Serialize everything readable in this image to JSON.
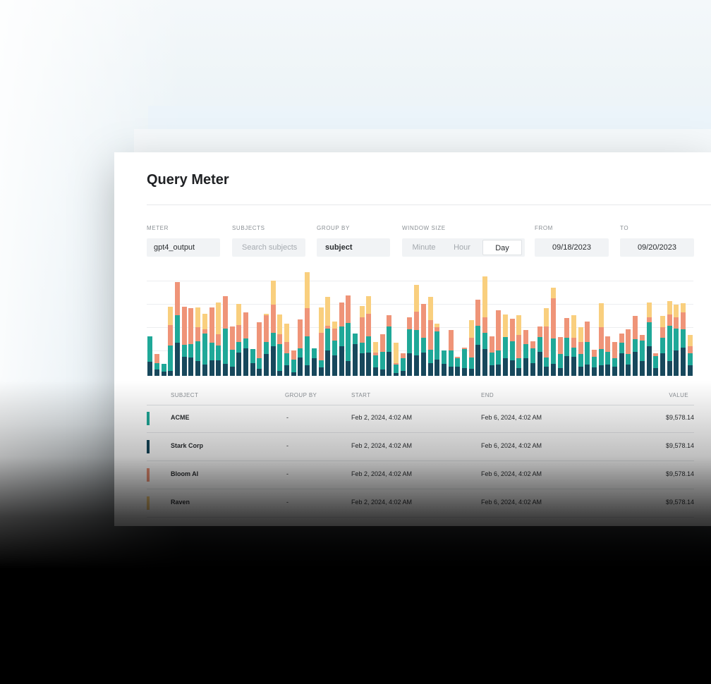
{
  "page": {
    "title": "Query Meter"
  },
  "filters": {
    "meter": {
      "label": "METER",
      "value": "gpt4_output"
    },
    "subjects": {
      "label": "SUBJECTS",
      "placeholder": "Search subjects"
    },
    "group_by": {
      "label": "GROUP BY",
      "value": "subject"
    },
    "window_size": {
      "label": "WINDOW SIZE",
      "options": [
        "Minute",
        "Hour",
        "Day"
      ],
      "selected": "Day"
    },
    "from": {
      "label": "FROM",
      "value": "09/18/2023"
    },
    "to": {
      "label": "TO",
      "value": "09/20/2023"
    }
  },
  "colors": {
    "acme": "#1fa898",
    "stark_corp": "#17485c",
    "bloom_ai": "#ef9478",
    "raven": "#f9cf7e"
  },
  "chart_data": {
    "type": "bar",
    "stacked": true,
    "series": [
      {
        "name": "Stark Corp",
        "color": "#17485c",
        "values": [
          16,
          7,
          5,
          6,
          38,
          22,
          21,
          17,
          13,
          18,
          18,
          14,
          11,
          27,
          32,
          15,
          8,
          25,
          34,
          6,
          12,
          4,
          21,
          12,
          20,
          10,
          29,
          24,
          34,
          17,
          37,
          26,
          27,
          10,
          7,
          28,
          3,
          6,
          26,
          24,
          27,
          15,
          19,
          14,
          11,
          11,
          9,
          8,
          36,
          31,
          12,
          13,
          20,
          18,
          9,
          20,
          15,
          28,
          11,
          14,
          9,
          23,
          22,
          11,
          13,
          10,
          12,
          13,
          11,
          26,
          13,
          28,
          17,
          34,
          9,
          26,
          17,
          29,
          33,
          12
        ]
      },
      {
        "name": "ACME",
        "color": "#1fa898",
        "values": [
          30,
          8,
          9,
          29,
          32,
          14,
          16,
          23,
          36,
          20,
          17,
          41,
          19,
          12,
          11,
          16,
          12,
          14,
          16,
          31,
          14,
          15,
          11,
          34,
          12,
          8,
          26,
          17,
          23,
          44,
          12,
          12,
          19,
          14,
          21,
          29,
          10,
          14,
          28,
          29,
          17,
          15,
          32,
          15,
          18,
          9,
          22,
          13,
          22,
          19,
          15,
          16,
          25,
          22,
          11,
          17,
          17,
          17,
          10,
          29,
          16,
          21,
          11,
          14,
          26,
          12,
          19,
          15,
          9,
          12,
          12,
          14,
          24,
          28,
          14,
          18,
          41,
          26,
          21,
          14
        ]
      }
    ],
    "extra_series": [
      {
        "name": "Bloom AI",
        "color": "#ef9478",
        "values": [
          0,
          10,
          0,
          24,
          38,
          44,
          41,
          16,
          5,
          41,
          13,
          37,
          27,
          20,
          30,
          0,
          42,
          31,
          32,
          11,
          13,
          10,
          33,
          32,
          0,
          32,
          3,
          14,
          28,
          32,
          0,
          30,
          26,
          3,
          20,
          13,
          2,
          6,
          14,
          21,
          39,
          34,
          5,
          0,
          24,
          2,
          2,
          23,
          30,
          18,
          19,
          47,
          0,
          26,
          27,
          16,
          8,
          12,
          36,
          47,
          20,
          23,
          11,
          14,
          24,
          8,
          25,
          18,
          19,
          11,
          29,
          27,
          6,
          6,
          3,
          12,
          13,
          13,
          19,
          8
        ]
      },
      {
        "name": "Raven",
        "color": "#f9cf7e",
        "values": [
          0,
          0,
          0,
          21,
          0,
          0,
          0,
          23,
          18,
          0,
          37,
          0,
          0,
          24,
          0,
          0,
          0,
          2,
          28,
          23,
          21,
          0,
          0,
          42,
          0,
          29,
          33,
          8,
          0,
          0,
          0,
          13,
          20,
          12,
          0,
          0,
          23,
          0,
          0,
          31,
          0,
          27,
          4,
          0,
          0,
          0,
          0,
          20,
          0,
          47,
          0,
          0,
          26,
          0,
          23,
          0,
          0,
          0,
          21,
          12,
          0,
          0,
          26,
          17,
          0,
          0,
          28,
          0,
          0,
          0,
          0,
          0,
          0,
          17,
          0,
          13,
          15,
          14,
          11,
          13
        ]
      }
    ],
    "ylim": [
      0,
      110
    ],
    "grid": true
  },
  "table": {
    "columns": [
      "SUBJECT",
      "GROUP BY",
      "START",
      "END",
      "VALUE"
    ],
    "rows": [
      {
        "subject": "ACME",
        "group_by": "-",
        "start": "Feb 2, 2024, 4:02 AM",
        "end": "Feb 6, 2024, 4:02 AM",
        "value": "$9,578.14",
        "color": "#1fa898"
      },
      {
        "subject": "Stark Corp",
        "group_by": "-",
        "start": "Feb 2, 2024, 4:02 AM",
        "end": "Feb 6, 2024, 4:02 AM",
        "value": "$9,578.14",
        "color": "#17485c"
      },
      {
        "subject": "Bloom AI",
        "group_by": "-",
        "start": "Feb 2, 2024, 4:02 AM",
        "end": "Feb 6, 2024, 4:02 AM",
        "value": "$9,578.14",
        "color": "#ef9478"
      },
      {
        "subject": "Raven",
        "group_by": "-",
        "start": "Feb 2, 2024, 4:02 AM",
        "end": "Feb 6, 2024, 4:02 AM",
        "value": "$9,578.14",
        "color": "#f9cf7e"
      }
    ]
  }
}
